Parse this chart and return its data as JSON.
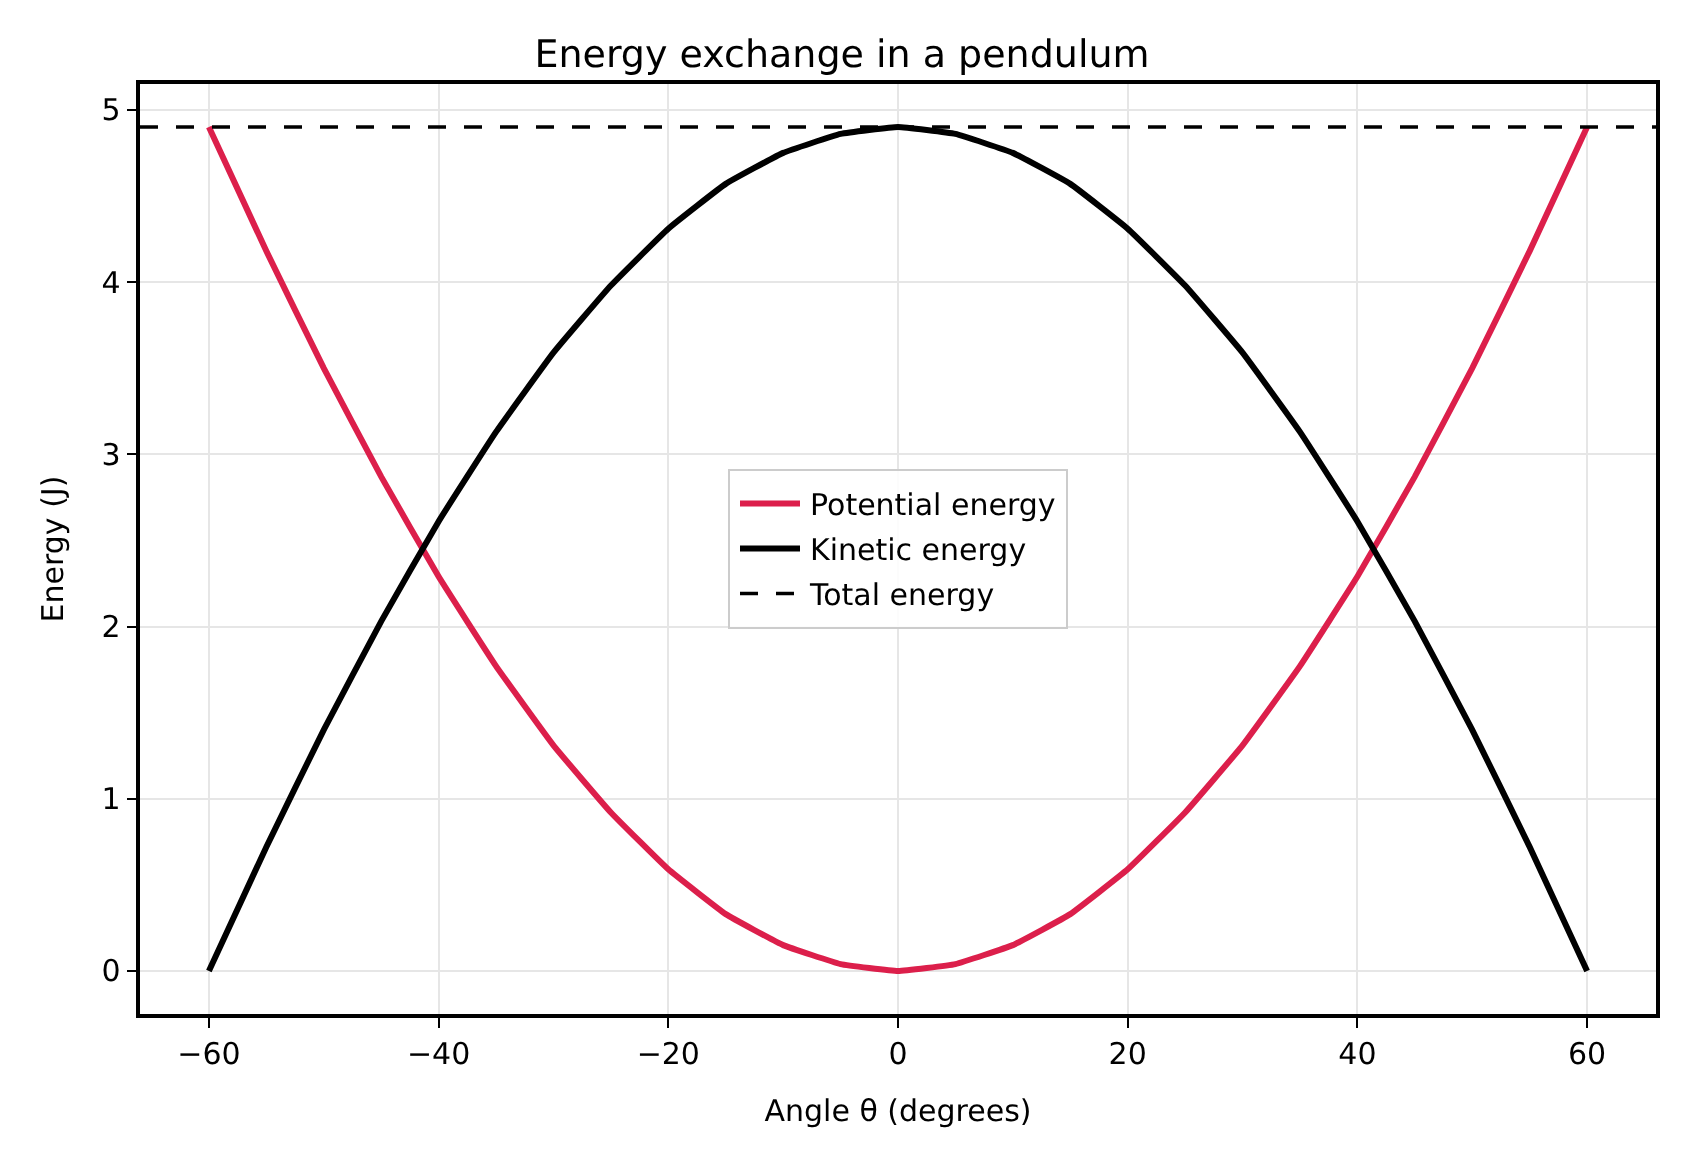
{
  "chart_data": {
    "type": "line",
    "title": "Energy exchange in a pendulum",
    "xlabel": "Angle θ (degrees)",
    "ylabel": "Energy (J)",
    "x": [
      -60,
      -55,
      -50,
      -45,
      -40,
      -35,
      -30,
      -25,
      -20,
      -15,
      -10,
      -5,
      0,
      5,
      10,
      15,
      20,
      25,
      30,
      35,
      40,
      45,
      50,
      55,
      60
    ],
    "series": [
      {
        "name": "Potential energy",
        "color": "#dc1f4b",
        "values": [
          4.9,
          4.18,
          3.5,
          2.87,
          2.29,
          1.77,
          1.31,
          0.92,
          0.59,
          0.33,
          0.15,
          0.04,
          0,
          0.04,
          0.15,
          0.33,
          0.59,
          0.92,
          1.31,
          1.77,
          2.29,
          2.87,
          3.5,
          4.18,
          4.9
        ]
      },
      {
        "name": "Kinetic energy",
        "color": "#000000",
        "values": [
          0,
          0.72,
          1.4,
          2.03,
          2.61,
          3.13,
          3.59,
          3.98,
          4.31,
          4.57,
          4.75,
          4.86,
          4.9,
          4.86,
          4.75,
          4.57,
          4.31,
          3.98,
          3.59,
          3.13,
          2.61,
          2.03,
          1.4,
          0.72,
          0
        ]
      }
    ],
    "ref_lines": [
      {
        "axis": "y",
        "value": 4.9,
        "label": "Total energy",
        "color": "#000000",
        "line_style": "dashed"
      }
    ],
    "xlim": [
      -66,
      66
    ],
    "xticks": [
      {
        "value": -60,
        "label": "−60"
      },
      {
        "value": -40,
        "label": "−40"
      },
      {
        "value": -20,
        "label": "−20"
      },
      0,
      20,
      40,
      60
    ],
    "ylim": [
      -0.25,
      5.15
    ],
    "yticks": [
      0,
      1,
      2,
      3,
      4,
      5
    ],
    "grid": true,
    "legend": "center",
    "line_style": "solid",
    "marker": "none"
  }
}
